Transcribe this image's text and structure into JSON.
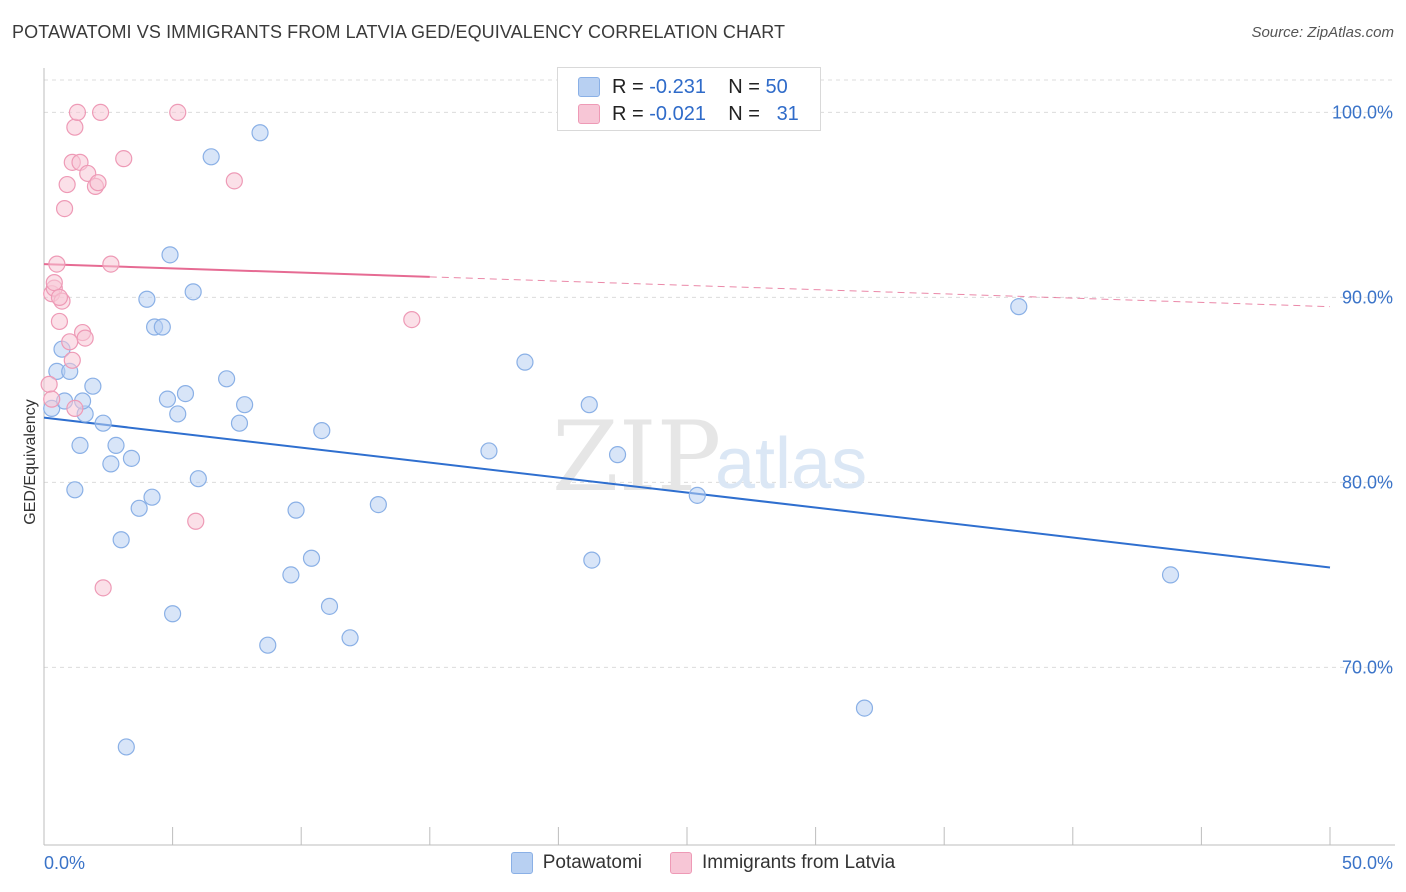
{
  "header": {
    "title": "POTAWATOMI VS IMMIGRANTS FROM LATVIA GED/EQUIVALENCY CORRELATION CHART",
    "source": "Source: ZipAtlas.com"
  },
  "watermark": {
    "zip": "ZIP",
    "atlas": "atlas"
  },
  "legend": {
    "rows": [
      {
        "r_label": "R =",
        "r_value": "-0.231",
        "n_label": "N =",
        "n_value": "50"
      },
      {
        "r_label": "R =",
        "r_value": "-0.021",
        "n_label": "N =",
        "n_value": "31"
      }
    ]
  },
  "colors": {
    "series1_fill": "#b8d0f2",
    "series1_stroke": "#8ab0e6",
    "series1_line": "#2f6fcf",
    "series2_fill": "#f7c6d6",
    "series2_stroke": "#ee9ab6",
    "series2_line": "#e66b93",
    "tick_label": "#3a73c8",
    "grid": "#dcdcdc"
  },
  "chart_data": {
    "type": "scatter",
    "title": "POTAWATOMI VS IMMIGRANTS FROM LATVIA GED/EQUIVALENCY CORRELATION CHART",
    "xlabel": "",
    "ylabel": "GED/Equivalency",
    "xlim": [
      0,
      50
    ],
    "ylim": [
      60.4,
      102.4
    ],
    "x_tick_labels": [
      "0.0%",
      "50.0%"
    ],
    "y_ticks": [
      70,
      80,
      90,
      100
    ],
    "y_tick_labels": [
      "70.0%",
      "80.0%",
      "90.0%",
      "100.0%"
    ],
    "grid": "horizontal dashed",
    "legend_position": "top-center",
    "series": [
      {
        "name": "Potawatomi",
        "r": -0.231,
        "n": 50,
        "trend": {
          "x": [
            0,
            50
          ],
          "y": [
            83.5,
            75.4
          ],
          "dashed_from": null
        },
        "points": [
          [
            0.3,
            84.0
          ],
          [
            0.5,
            86.0
          ],
          [
            0.7,
            87.2
          ],
          [
            0.8,
            84.4
          ],
          [
            1.0,
            86.0
          ],
          [
            1.2,
            79.6
          ],
          [
            1.4,
            82.0
          ],
          [
            1.6,
            83.7
          ],
          [
            1.9,
            85.2
          ],
          [
            2.3,
            83.2
          ],
          [
            2.6,
            81.0
          ],
          [
            2.8,
            82.0
          ],
          [
            3.0,
            76.9
          ],
          [
            3.4,
            81.3
          ],
          [
            3.7,
            78.6
          ],
          [
            4.0,
            89.9
          ],
          [
            4.2,
            79.2
          ],
          [
            4.3,
            88.4
          ],
          [
            4.6,
            88.4
          ],
          [
            4.8,
            84.5
          ],
          [
            4.9,
            92.3
          ],
          [
            5.0,
            72.9
          ],
          [
            5.2,
            83.7
          ],
          [
            5.5,
            84.8
          ],
          [
            5.8,
            90.3
          ],
          [
            6.0,
            80.2
          ],
          [
            6.5,
            97.6
          ],
          [
            7.1,
            85.6
          ],
          [
            7.6,
            83.2
          ],
          [
            7.8,
            84.2
          ],
          [
            8.4,
            98.9
          ],
          [
            8.7,
            71.2
          ],
          [
            9.6,
            75.0
          ],
          [
            9.8,
            78.5
          ],
          [
            10.4,
            75.9
          ],
          [
            10.8,
            82.8
          ],
          [
            11.1,
            73.3
          ],
          [
            11.9,
            71.6
          ],
          [
            13.0,
            78.8
          ],
          [
            17.3,
            81.7
          ],
          [
            18.7,
            86.5
          ],
          [
            21.2,
            84.2
          ],
          [
            21.3,
            75.8
          ],
          [
            22.3,
            81.5
          ],
          [
            25.4,
            79.3
          ],
          [
            31.9,
            67.8
          ],
          [
            37.9,
            89.5
          ],
          [
            43.8,
            75.0
          ],
          [
            3.2,
            65.7
          ],
          [
            1.5,
            84.4
          ]
        ]
      },
      {
        "name": "Immigrants from Latvia",
        "r": -0.021,
        "n": 31,
        "trend": {
          "x": [
            0,
            50
          ],
          "y": [
            91.8,
            89.5
          ],
          "dashed_from": 15
        },
        "points": [
          [
            0.2,
            85.3
          ],
          [
            0.3,
            90.2
          ],
          [
            0.4,
            90.5
          ],
          [
            0.5,
            91.8
          ],
          [
            0.6,
            88.7
          ],
          [
            0.7,
            89.8
          ],
          [
            0.8,
            94.8
          ],
          [
            0.9,
            96.1
          ],
          [
            1.0,
            87.6
          ],
          [
            1.1,
            97.3
          ],
          [
            1.1,
            86.6
          ],
          [
            1.2,
            84.0
          ],
          [
            1.2,
            99.2
          ],
          [
            1.3,
            100.0
          ],
          [
            1.4,
            97.3
          ],
          [
            1.5,
            88.1
          ],
          [
            1.6,
            87.8
          ],
          [
            1.7,
            96.7
          ],
          [
            2.0,
            96.0
          ],
          [
            2.1,
            96.2
          ],
          [
            2.2,
            100.0
          ],
          [
            2.3,
            74.3
          ],
          [
            2.6,
            91.8
          ],
          [
            3.1,
            97.5
          ],
          [
            5.2,
            100.0
          ],
          [
            5.9,
            77.9
          ],
          [
            7.4,
            96.3
          ],
          [
            14.3,
            88.8
          ],
          [
            0.4,
            90.8
          ],
          [
            0.6,
            90.0
          ],
          [
            0.3,
            84.5
          ]
        ]
      }
    ]
  }
}
